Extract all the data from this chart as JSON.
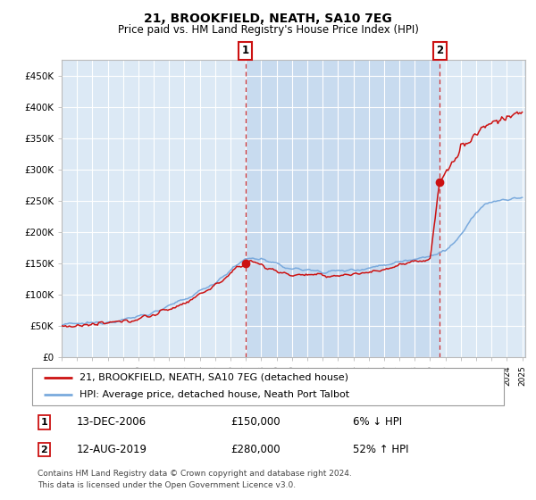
{
  "title": "21, BROOKFIELD, NEATH, SA10 7EG",
  "subtitle": "Price paid vs. HM Land Registry's House Price Index (HPI)",
  "plot_bg_color": "#dce9f5",
  "shaded_region_color": "#c8dbef",
  "yticks": [
    0,
    50000,
    100000,
    150000,
    200000,
    250000,
    300000,
    350000,
    400000,
    450000
  ],
  "ytick_labels": [
    "£0",
    "£50K",
    "£100K",
    "£150K",
    "£200K",
    "£250K",
    "£300K",
    "£350K",
    "£400K",
    "£450K"
  ],
  "sale1_year": 2006.96,
  "sale1_price": 150000,
  "sale2_year": 2019.62,
  "sale2_price": 280000,
  "legend_line1": "21, BROOKFIELD, NEATH, SA10 7EG (detached house)",
  "legend_line2": "HPI: Average price, detached house, Neath Port Talbot",
  "annotation1_date": "13-DEC-2006",
  "annotation1_price": "£150,000",
  "annotation1_hpi": "6% ↓ HPI",
  "annotation2_date": "12-AUG-2019",
  "annotation2_price": "£280,000",
  "annotation2_hpi": "52% ↑ HPI",
  "footer": "Contains HM Land Registry data © Crown copyright and database right 2024.\nThis data is licensed under the Open Government Licence v3.0.",
  "hpi_color": "#7aaadd",
  "price_color": "#cc1111",
  "grid_color": "#ffffff",
  "spine_color": "#bbbbbb"
}
